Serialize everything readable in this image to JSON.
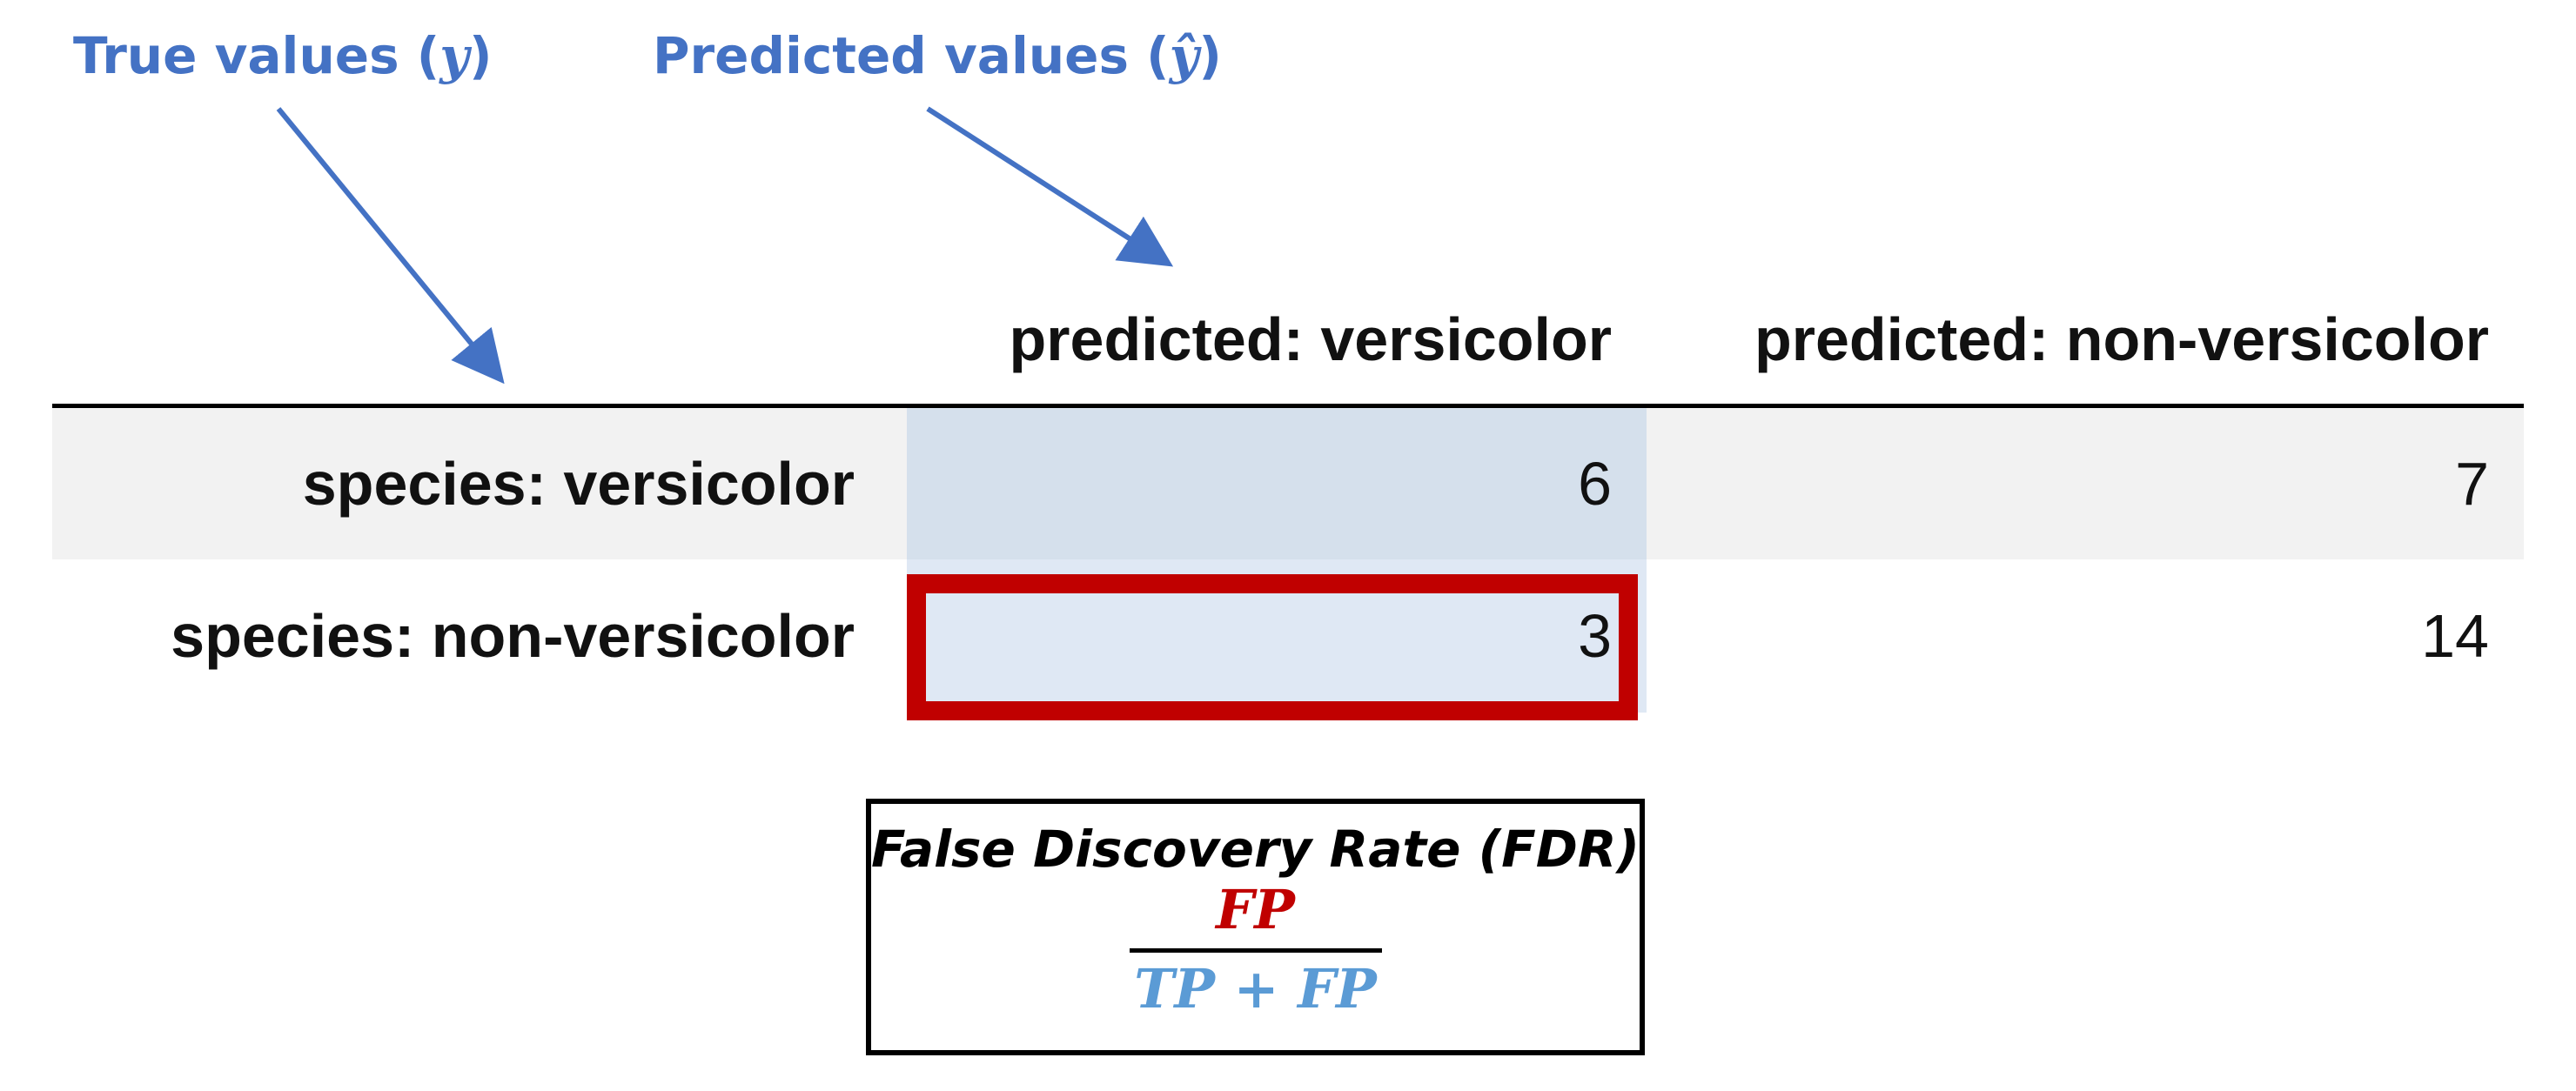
{
  "annotations": {
    "true_values": {
      "text": "True values (",
      "var": "y",
      "close": ")"
    },
    "predicted_values": {
      "text": "Predicted values (",
      "var": "ŷ",
      "close": ")"
    }
  },
  "matrix": {
    "col_headers": [
      "predicted: versicolor",
      "predicted: non-versicolor"
    ],
    "rows": [
      {
        "label": "species: versicolor",
        "values": [
          "6",
          "7"
        ]
      },
      {
        "label": "species: non-versicolor",
        "values": [
          "3",
          "14"
        ]
      }
    ]
  },
  "fdr": {
    "title": "False Discovery Rate (FDR)",
    "numerator": "FP",
    "denominator": "TP + FP"
  },
  "colors": {
    "annotation": "#4472c4",
    "highlight": "#c00000",
    "denominator": "#5b9bd5",
    "cell_vv": "#d5e0ec",
    "cell_nv": "#dfe8f4",
    "row_shade": "#f2f2f2"
  }
}
